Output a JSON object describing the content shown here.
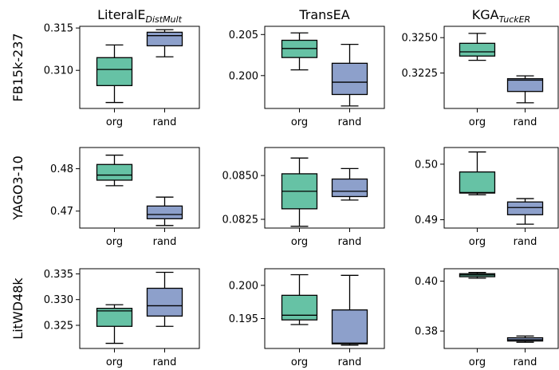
{
  "colors": {
    "org": "#66c2a5",
    "rand": "#8da0cb"
  },
  "chart_data": {
    "type": "box",
    "column_titles": [
      {
        "main": "LiteralE",
        "sub": "DistMult"
      },
      {
        "main": "TransEA",
        "sub": ""
      },
      {
        "main": "KGA",
        "sub": "TuckER"
      }
    ],
    "row_labels": [
      "FB15k-237",
      "YAGO3-10",
      "LitWD48k"
    ],
    "categories": [
      "org",
      "rand"
    ],
    "panels": [
      {
        "row": 0,
        "col": 0,
        "ylim": [
          0.3055,
          0.3152
        ],
        "yticks": [
          0.31,
          0.315
        ],
        "ytick_labels": [
          "0.310",
          "0.315"
        ],
        "boxes": [
          {
            "category": "org",
            "whislo": 0.3062,
            "q1": 0.3082,
            "med": 0.3101,
            "q3": 0.3115,
            "whishi": 0.313
          },
          {
            "category": "rand",
            "whislo": 0.3116,
            "q1": 0.3129,
            "med": 0.3141,
            "q3": 0.3145,
            "whishi": 0.3148
          }
        ]
      },
      {
        "row": 0,
        "col": 1,
        "ylim": [
          0.196,
          0.206
        ],
        "yticks": [
          0.2,
          0.205
        ],
        "ytick_labels": [
          "0.200",
          "0.205"
        ],
        "boxes": [
          {
            "category": "org",
            "whislo": 0.2007,
            "q1": 0.2022,
            "med": 0.2033,
            "q3": 0.2043,
            "whishi": 0.2052
          },
          {
            "category": "rand",
            "whislo": 0.1963,
            "q1": 0.1977,
            "med": 0.1992,
            "q3": 0.2015,
            "whishi": 0.2038
          }
        ]
      },
      {
        "row": 0,
        "col": 2,
        "ylim": [
          0.32,
          0.3258
        ],
        "yticks": [
          0.3225,
          0.325
        ],
        "ytick_labels": [
          "0.3225",
          "0.3250"
        ],
        "boxes": [
          {
            "category": "org",
            "whislo": 0.3234,
            "q1": 0.3237,
            "med": 0.324,
            "q3": 0.3246,
            "whishi": 0.3253
          },
          {
            "category": "rand",
            "whislo": 0.3204,
            "q1": 0.3212,
            "med": 0.322,
            "q3": 0.3221,
            "whishi": 0.3223
          }
        ]
      },
      {
        "row": 1,
        "col": 0,
        "ylim": [
          0.466,
          0.485
        ],
        "yticks": [
          0.47,
          0.48
        ],
        "ytick_labels": [
          "0.47",
          "0.48"
        ],
        "boxes": [
          {
            "category": "org",
            "whislo": 0.476,
            "q1": 0.4773,
            "med": 0.4785,
            "q3": 0.481,
            "whishi": 0.4832
          },
          {
            "category": "rand",
            "whislo": 0.4666,
            "q1": 0.4682,
            "med": 0.4692,
            "q3": 0.4712,
            "whishi": 0.4733
          }
        ]
      },
      {
        "row": 1,
        "col": 1,
        "ylim": [
          0.082,
          0.0866
        ],
        "yticks": [
          0.0825,
          0.085
        ],
        "ytick_labels": [
          "0.0825",
          "0.0850"
        ],
        "boxes": [
          {
            "category": "org",
            "whislo": 0.0821,
            "q1": 0.0831,
            "med": 0.0841,
            "q3": 0.0851,
            "whishi": 0.086
          },
          {
            "category": "rand",
            "whislo": 0.0836,
            "q1": 0.0838,
            "med": 0.0841,
            "q3": 0.0848,
            "whishi": 0.0854
          }
        ]
      },
      {
        "row": 1,
        "col": 2,
        "ylim": [
          0.4885,
          0.503
        ],
        "yticks": [
          0.49,
          0.5
        ],
        "ytick_labels": [
          "0.49",
          "0.50"
        ],
        "boxes": [
          {
            "category": "org",
            "whislo": 0.4945,
            "q1": 0.4948,
            "med": 0.4949,
            "q3": 0.4986,
            "whishi": 0.5022
          },
          {
            "category": "rand",
            "whislo": 0.4892,
            "q1": 0.4909,
            "med": 0.4922,
            "q3": 0.4932,
            "whishi": 0.4938
          }
        ]
      },
      {
        "row": 2,
        "col": 0,
        "ylim": [
          0.3205,
          0.336
        ],
        "yticks": [
          0.325,
          0.33,
          0.335
        ],
        "ytick_labels": [
          "0.325",
          "0.330",
          "0.335"
        ],
        "boxes": [
          {
            "category": "org",
            "whislo": 0.3215,
            "q1": 0.3248,
            "med": 0.3278,
            "q3": 0.3283,
            "whishi": 0.329
          },
          {
            "category": "rand",
            "whislo": 0.3248,
            "q1": 0.3268,
            "med": 0.3288,
            "q3": 0.3322,
            "whishi": 0.3353
          }
        ]
      },
      {
        "row": 2,
        "col": 1,
        "ylim": [
          0.1905,
          0.2025
        ],
        "yticks": [
          0.195,
          0.2
        ],
        "ytick_labels": [
          "0.195",
          "0.200"
        ],
        "boxes": [
          {
            "category": "org",
            "whislo": 0.1941,
            "q1": 0.1948,
            "med": 0.1955,
            "q3": 0.1985,
            "whishi": 0.2016
          },
          {
            "category": "rand",
            "whislo": 0.191,
            "q1": 0.1912,
            "med": 0.1913,
            "q3": 0.1963,
            "whishi": 0.2015
          }
        ]
      },
      {
        "row": 2,
        "col": 2,
        "ylim": [
          0.373,
          0.405
        ],
        "yticks": [
          0.38,
          0.4
        ],
        "ytick_labels": [
          "0.38",
          "0.40"
        ],
        "boxes": [
          {
            "category": "org",
            "whislo": 0.4012,
            "q1": 0.4018,
            "med": 0.4025,
            "q3": 0.403,
            "whishi": 0.4035
          },
          {
            "category": "rand",
            "whislo": 0.3755,
            "q1": 0.376,
            "med": 0.3765,
            "q3": 0.3773,
            "whishi": 0.378
          }
        ]
      }
    ]
  }
}
